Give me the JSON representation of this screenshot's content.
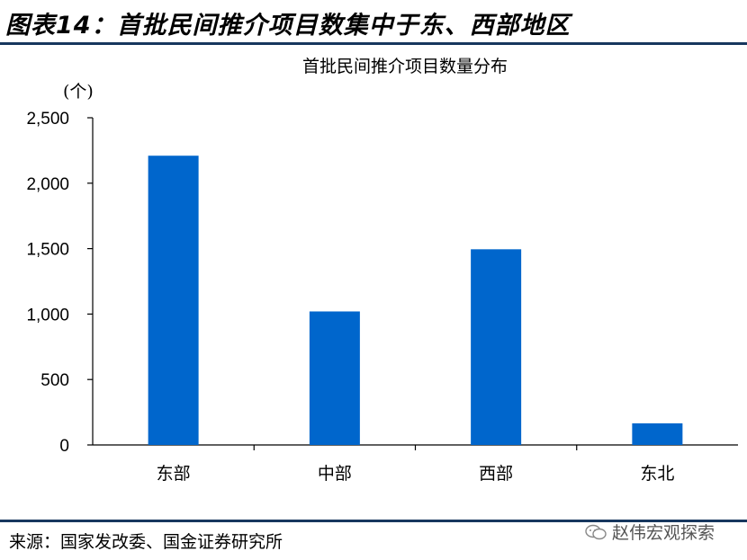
{
  "figure": {
    "title": "图表14：首批民间推介项目数集中于东、西部地区",
    "source": "来源：国家发改委、国金证券研究所",
    "watermark": "赵伟宏观探索"
  },
  "chart_data": {
    "type": "bar",
    "title": "首批民间推介项目数量分布",
    "ylabel": "(个)",
    "xlabel": "",
    "categories": [
      "东部",
      "中部",
      "西部",
      "东北"
    ],
    "values": [
      2210,
      1020,
      1495,
      165
    ],
    "ylim": [
      0,
      2500
    ],
    "yticks": [
      0,
      500,
      1000,
      1500,
      2000,
      2500
    ],
    "ytick_labels": [
      "0",
      "500",
      "1,000",
      "1,500",
      "2,000",
      "2,500"
    ],
    "grid": false,
    "bar_color": "#0066cc"
  }
}
